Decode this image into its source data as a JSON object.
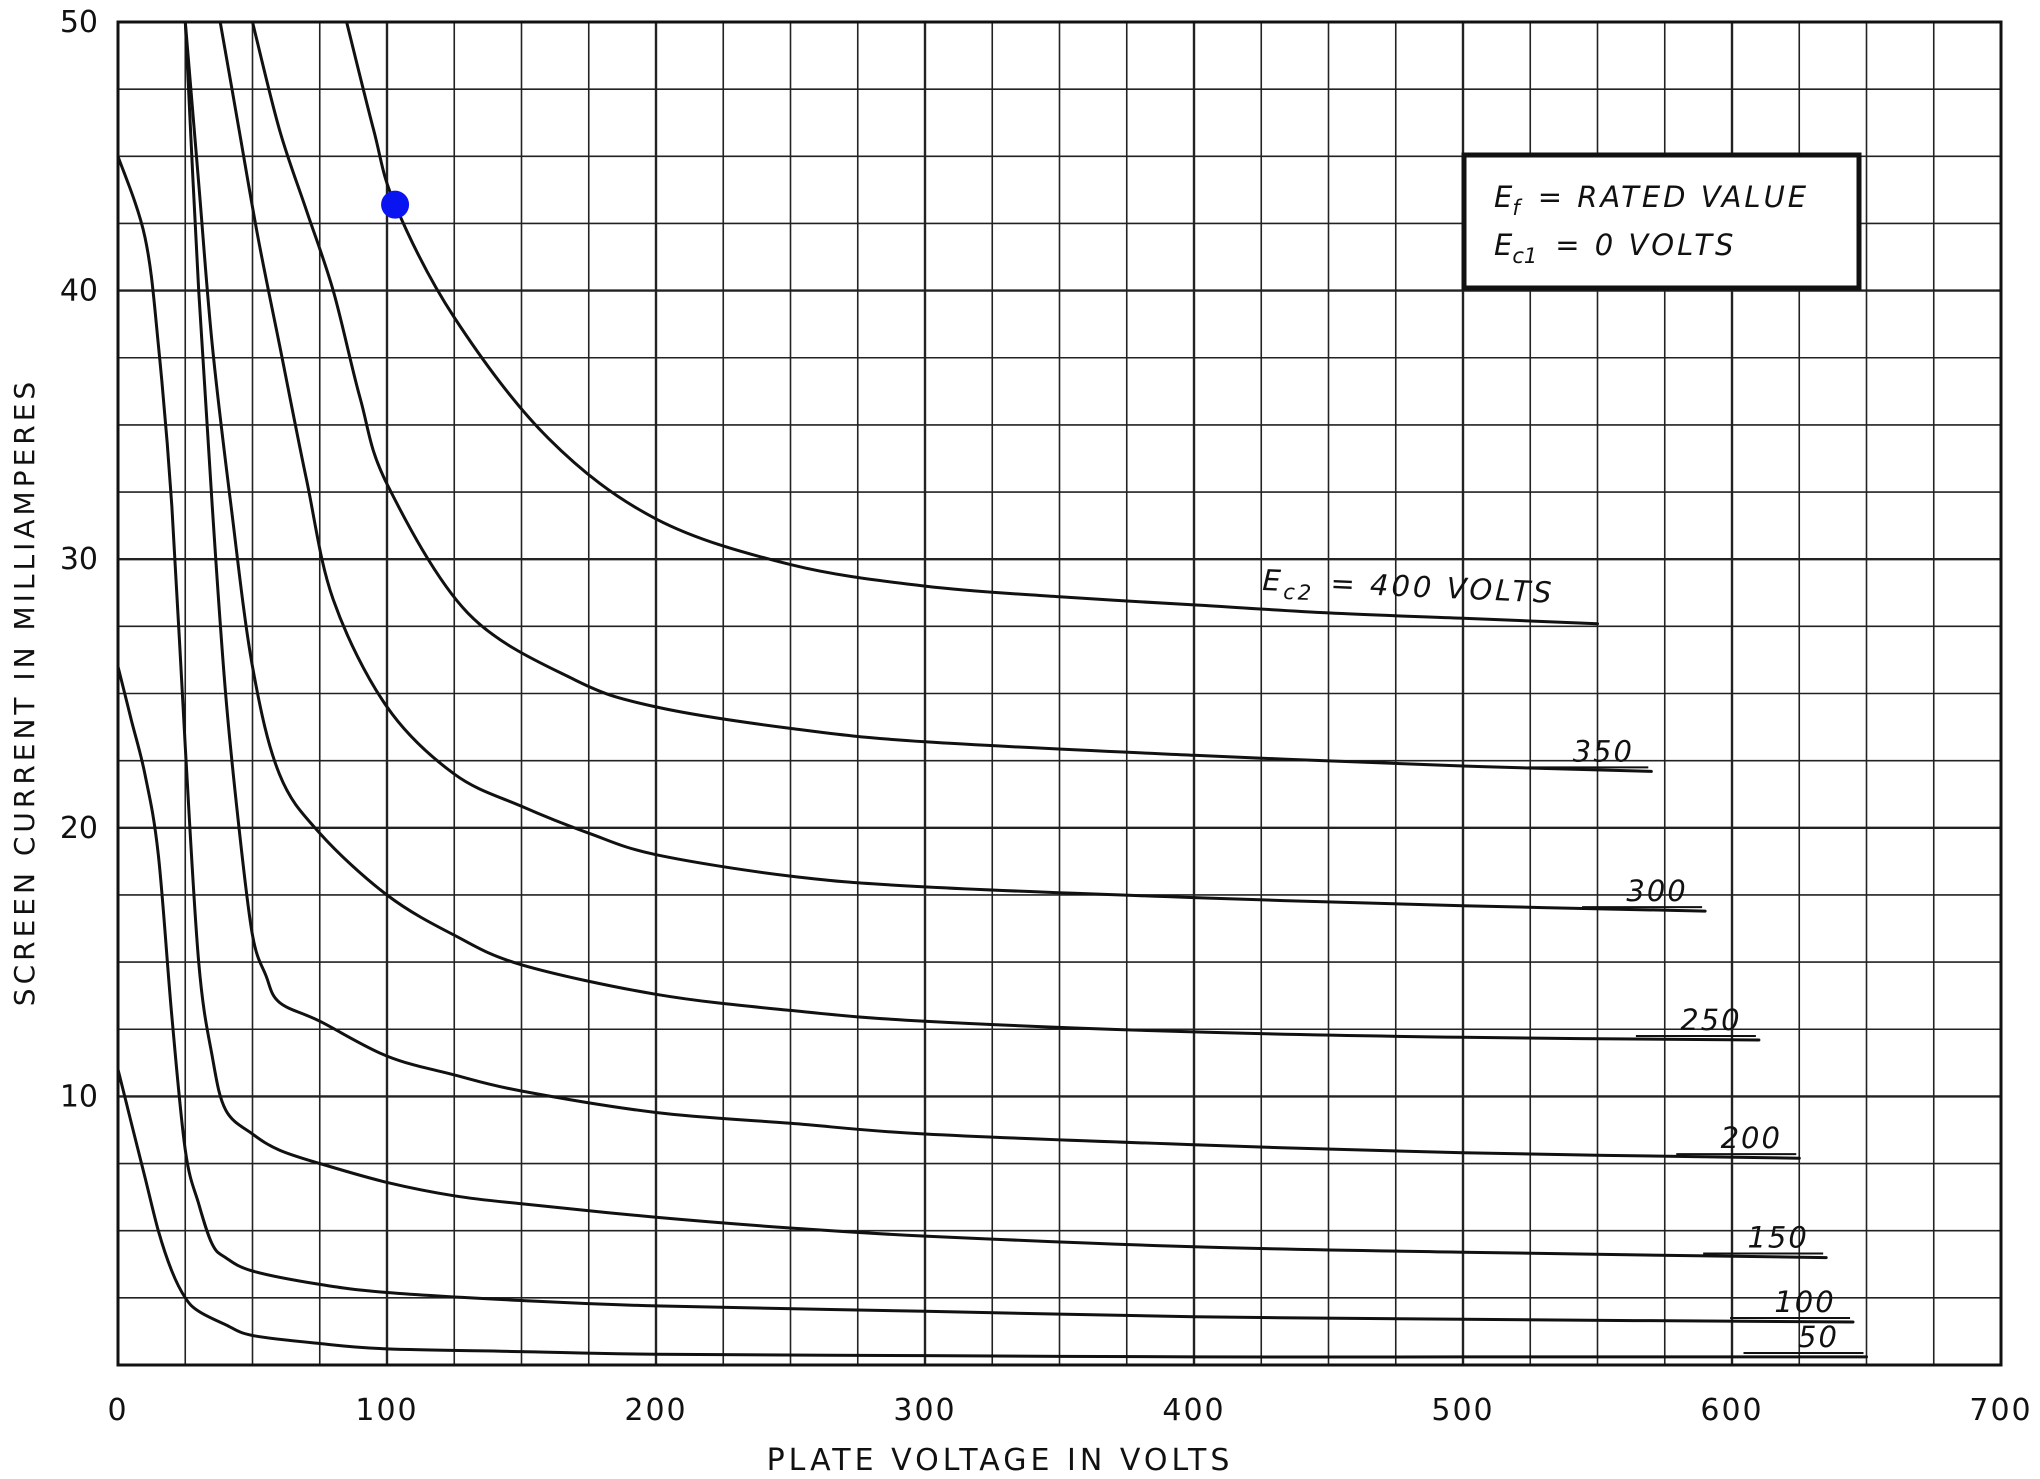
{
  "chart_data": {
    "type": "line",
    "title": "",
    "xlabel": "PLATE VOLTAGE IN VOLTS",
    "ylabel": "SCREEN CURRENT IN MILLIAMPERES",
    "xlim": [
      0,
      700
    ],
    "ylim": [
      0,
      50
    ],
    "x_ticks": [
      0,
      100,
      200,
      300,
      400,
      500,
      600,
      700
    ],
    "y_ticks": [
      10,
      20,
      30,
      40,
      50
    ],
    "x_tick_labels": [
      "0",
      "100",
      "200",
      "300",
      "400",
      "500",
      "600",
      "700"
    ],
    "y_tick_labels": [
      "10",
      "20",
      "30",
      "40",
      "50"
    ],
    "grid": true,
    "conditions": {
      "line1_main": "E",
      "line1_sub": "f",
      "line1_rest": "= RATED VALUE",
      "line2_main": "E",
      "line2_sub": "c1",
      "line2_rest": "= 0 VOLTS"
    },
    "series": [
      {
        "name": "400",
        "label_main": "E",
        "label_sub": "c2",
        "label_rest": "= 400 VOLTS",
        "x": [
          85,
          95,
          103,
          125,
          160,
          200,
          250,
          300,
          350,
          400,
          450,
          500,
          550
        ],
        "y": [
          50,
          46,
          43.2,
          39,
          34.5,
          31.5,
          29.8,
          29.0,
          28.6,
          28.3,
          28.0,
          27.8,
          27.6
        ]
      },
      {
        "name": "350",
        "label": "350",
        "x": [
          50,
          60,
          70,
          80,
          90,
          100,
          130,
          170,
          200,
          250,
          300,
          400,
          500,
          570
        ],
        "y": [
          50,
          46,
          43,
          40,
          36,
          32.8,
          28,
          25.5,
          24.5,
          23.7,
          23.2,
          22.7,
          22.3,
          22.1
        ]
      },
      {
        "name": "300",
        "label": "300",
        "x": [
          38,
          45,
          52,
          60,
          70,
          80,
          100,
          125,
          150,
          175,
          200,
          250,
          300,
          400,
          500,
          590
        ],
        "y": [
          50,
          46,
          42,
          38,
          33,
          28.5,
          24.5,
          22.0,
          20.8,
          19.8,
          19.0,
          18.2,
          17.8,
          17.4,
          17.1,
          16.9
        ]
      },
      {
        "name": "250",
        "label": "250",
        "x": [
          25,
          30,
          35,
          42,
          50,
          60,
          75,
          100,
          125,
          150,
          200,
          250,
          300,
          400,
          500,
          610
        ],
        "y": [
          50,
          44,
          38,
          32,
          26,
          22,
          19.8,
          17.5,
          16.0,
          14.9,
          13.8,
          13.2,
          12.8,
          12.4,
          12.2,
          12.1
        ]
      },
      {
        "name": "200",
        "label": "200",
        "x": [
          25,
          30,
          35,
          40,
          45,
          50,
          55,
          60,
          75,
          100,
          125,
          150,
          200,
          250,
          300,
          400,
          500,
          625
        ],
        "y": [
          50,
          40,
          32,
          25,
          20,
          16,
          14.5,
          13.5,
          12.8,
          11.5,
          10.8,
          10.2,
          9.4,
          9.0,
          8.6,
          8.2,
          7.9,
          7.7
        ]
      },
      {
        "name": "150",
        "label": "150",
        "x": [
          0,
          10,
          15,
          20,
          25,
          30,
          35,
          40,
          50,
          60,
          75,
          100,
          125,
          150,
          200,
          250,
          300,
          400,
          500,
          635
        ],
        "y": [
          45,
          42,
          38,
          32,
          23,
          15,
          11.5,
          9.5,
          8.6,
          8.0,
          7.5,
          6.8,
          6.3,
          6.0,
          5.5,
          5.1,
          4.8,
          4.4,
          4.2,
          4.0
        ]
      },
      {
        "name": "100",
        "label": "100",
        "x": [
          0,
          5,
          10,
          15,
          20,
          25,
          30,
          35,
          40,
          50,
          75,
          100,
          150,
          200,
          300,
          400,
          500,
          645
        ],
        "y": [
          26,
          24,
          22,
          19,
          13,
          8,
          6,
          4.5,
          4.0,
          3.5,
          3.0,
          2.7,
          2.4,
          2.2,
          2.0,
          1.8,
          1.7,
          1.6
        ]
      },
      {
        "name": "50",
        "label": "50",
        "x": [
          0,
          5,
          10,
          15,
          20,
          25,
          30,
          40,
          50,
          75,
          100,
          150,
          200,
          300,
          400,
          500,
          650
        ],
        "y": [
          11,
          9,
          7,
          5,
          3.5,
          2.5,
          2.0,
          1.5,
          1.1,
          0.8,
          0.6,
          0.5,
          0.4,
          0.35,
          0.3,
          0.3,
          0.3
        ]
      }
    ],
    "marker": {
      "x": 103,
      "y": 43.2,
      "color": "#0a14f0"
    },
    "line_color": "#111111"
  }
}
